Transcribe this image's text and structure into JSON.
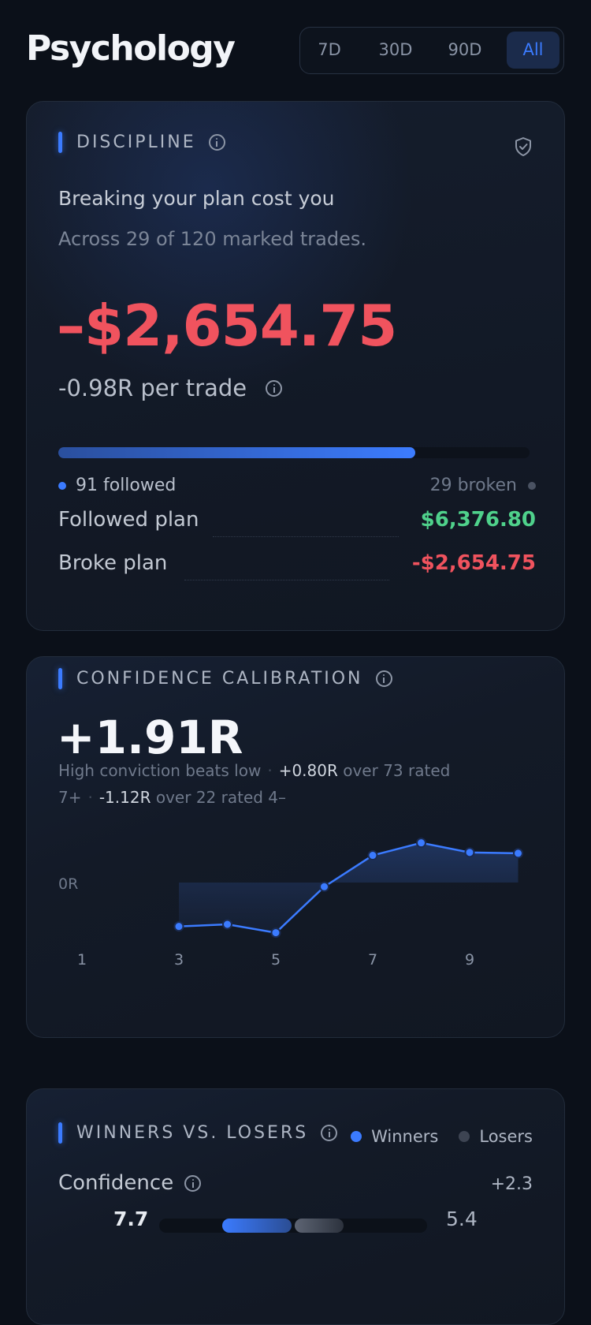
{
  "header": {
    "title": "Psychology",
    "ranges": [
      "7D",
      "30D",
      "90D",
      "All"
    ],
    "active_range": "All"
  },
  "discipline": {
    "title": "DISCIPLINE",
    "headline": "Breaking your plan cost you",
    "subline": "Across 29 of 120 marked trades.",
    "cost": "–$2,654.75",
    "per_trade": "-0.98R per trade",
    "followed_fraction": 0.7583,
    "followed_label": "91 followed",
    "broken_label": "29 broken",
    "rows": [
      {
        "label": "Followed plan",
        "value": "$6,376.80",
        "tone": "positive"
      },
      {
        "label": "Broke plan",
        "value": "-$2,654.75",
        "tone": "negative"
      }
    ],
    "colors": {
      "accent": "#3b7bff",
      "negative": "#f0535e",
      "positive": "#4fd18b",
      "muted": "#5b6475"
    }
  },
  "calibration": {
    "title": "CONFIDENCE CALIBRATION",
    "value": "+1.91R",
    "desc_lead": "High conviction beats low",
    "high_value": "+0.80R",
    "high_text": "over 73 rated",
    "high_bucket": "7+",
    "low_value": "-1.12R",
    "low_text": "over 22 rated 4–"
  },
  "chart_data": {
    "type": "line",
    "title": "",
    "xlabel": "",
    "ylabel": "",
    "x_ticks": [
      1,
      3,
      5,
      7,
      9
    ],
    "y_ticks": [
      "0R"
    ],
    "xlim": [
      0.3,
      10.3
    ],
    "ylim": [
      -1.6,
      1.3
    ],
    "grid": false,
    "series": [
      {
        "x": [
          3,
          4,
          5,
          6,
          7,
          8,
          9,
          10
        ],
        "values": [
          -1.05,
          -1.0,
          -1.2,
          -0.1,
          0.65,
          0.95,
          0.72,
          0.7
        ]
      }
    ],
    "fill_to_zero": true,
    "color": "#3b7bff"
  },
  "winners_losers": {
    "title": "WINNERS VS. LOSERS",
    "legend": [
      {
        "name": "Winners",
        "color": "#3b7bff"
      },
      {
        "name": "Losers",
        "color": "#5b6475"
      }
    ],
    "metric": {
      "label": "Confidence",
      "delta": "+2.3",
      "winners": 7.7,
      "losers": 5.4,
      "winners_label": "7.7",
      "losers_label": "5.4",
      "scale_max": 10
    }
  }
}
